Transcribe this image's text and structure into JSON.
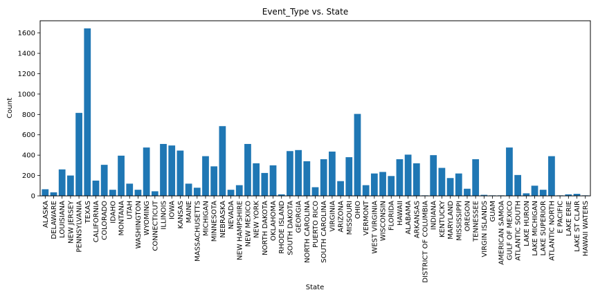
{
  "chart_data": {
    "type": "bar",
    "title": "Event_Type vs. State",
    "xlabel": "State",
    "ylabel": "Count",
    "ylim": [
      0,
      1720
    ],
    "yticks": [
      0,
      200,
      400,
      600,
      800,
      1000,
      1200,
      1400,
      1600
    ],
    "grid": false,
    "bar_color": "#1f77b4",
    "categories": [
      "ALASKA",
      "DELAWARE",
      "LOUISIANA",
      "NEW JERSEY",
      "PENNSYLVANIA",
      "TEXAS",
      "CALIFORNIA",
      "COLORADO",
      "IDAHO",
      "MONTANA",
      "UTAH",
      "WASHINGTON",
      "WYOMING",
      "CONNECTICUT",
      "ILLINOIS",
      "IOWA",
      "KANSAS",
      "MAINE",
      "MASSACHUSETTS",
      "MICHIGAN",
      "MINNESOTA",
      "NEBRASKA",
      "NEVADA",
      "NEW HAMPSHIRE",
      "NEW MEXICO",
      "NEW YORK",
      "NORTH DAKOTA",
      "OKLAHOMA",
      "RHODE ISLAND",
      "SOUTH DAKOTA",
      "GEORGIA",
      "NORTH CAROLINA",
      "PUERTO RICO",
      "SOUTH CAROLINA",
      "VIRGINIA",
      "ARIZONA",
      "MISSOURI",
      "OHIO",
      "VERMONT",
      "WEST VIRGINIA",
      "WISCONSIN",
      "FLORIDA",
      "HAWAII",
      "ALABAMA",
      "ARKANSAS",
      "DISTRICT OF COLUMBIA",
      "INDIANA",
      "KENTUCKY",
      "MARYLAND",
      "MISSISSIPPI",
      "OREGON",
      "TENNESSEE",
      "VIRGIN ISLANDS",
      "GUAM",
      "AMERICAN SAMOA",
      "GULF OF MEXICO",
      "ATLANTIC SOUTH",
      "LAKE HURON",
      "LAKE MICHIGAN",
      "LAKE SUPERIOR",
      "ATLANTIC NORTH",
      "E PACIFIC",
      "LAKE ERIE",
      "LAKE ST CLAIR",
      "HAWAII WATERS"
    ],
    "values": [
      65,
      35,
      260,
      200,
      815,
      1645,
      150,
      305,
      60,
      395,
      120,
      60,
      475,
      45,
      510,
      495,
      445,
      120,
      80,
      390,
      290,
      685,
      60,
      105,
      510,
      320,
      225,
      300,
      15,
      440,
      450,
      340,
      85,
      360,
      435,
      145,
      380,
      805,
      105,
      220,
      235,
      195,
      360,
      405,
      320,
      5,
      400,
      275,
      175,
      220,
      70,
      360,
      10,
      5,
      5,
      475,
      205,
      25,
      100,
      60,
      390,
      5,
      15,
      20,
      5
    ]
  }
}
